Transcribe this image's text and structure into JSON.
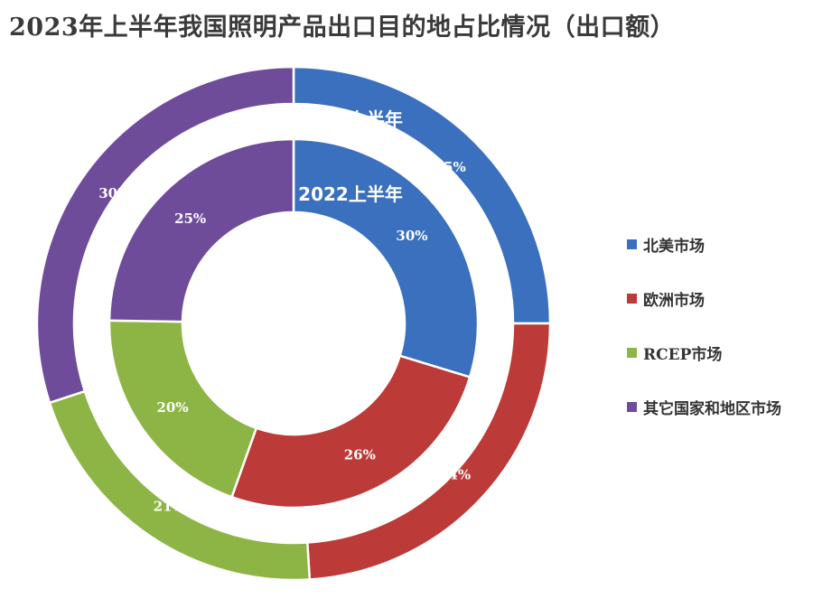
{
  "chart_data": {
    "type": "pie",
    "subtype": "nested-donut",
    "title": "2023年上半年我国照明产品出口目的地占比情况（出口额）",
    "categories": [
      "北美市场",
      "欧洲市场",
      "RCEP市场",
      "其它国家和地区市场"
    ],
    "colors": [
      "#3a70bd",
      "#bc3a37",
      "#8db545",
      "#6f4c99"
    ],
    "series": [
      {
        "name": "2023上半年",
        "ring": "outer",
        "values": [
          25,
          24,
          21,
          30
        ],
        "labels": [
          "25%",
          "24%",
          "21%",
          "30%"
        ]
      },
      {
        "name": "2022上半年",
        "ring": "inner",
        "values": [
          30,
          26,
          20,
          25
        ],
        "labels": [
          "30%",
          "26%",
          "20%",
          "25%"
        ]
      }
    ],
    "legend_position": "right",
    "start": "12 o'clock",
    "direction": "clockwise"
  }
}
